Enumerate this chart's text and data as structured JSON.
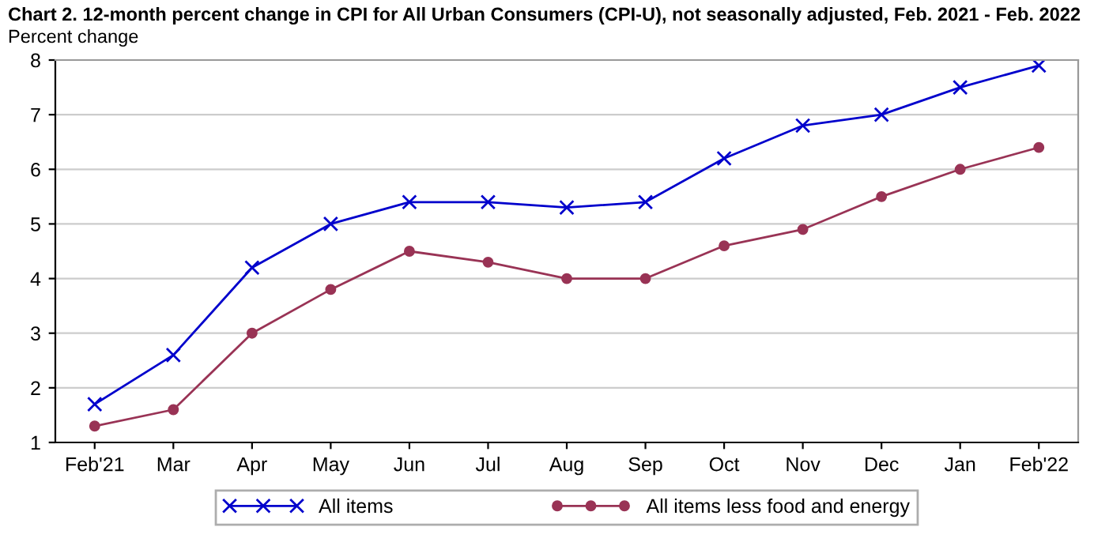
{
  "chart_data": {
    "type": "line",
    "title": "Chart 2. 12-month percent change in CPI for All Urban Consumers (CPI-U), not seasonally adjusted, Feb. 2021 - Feb. 2022",
    "ylabel": "Percent change",
    "categories": [
      "Feb'21",
      "Mar",
      "Apr",
      "May",
      "Jun",
      "Jul",
      "Aug",
      "Sep",
      "Oct",
      "Nov",
      "Dec",
      "Jan",
      "Feb'22"
    ],
    "series": [
      {
        "name": "All items",
        "color": "#0000cc",
        "marker": "cross",
        "values": [
          1.7,
          2.6,
          4.2,
          5.0,
          5.4,
          5.4,
          5.3,
          5.4,
          6.2,
          6.8,
          7.0,
          7.5,
          7.9
        ]
      },
      {
        "name": "All items less food and energy",
        "color": "#993355",
        "marker": "circle",
        "values": [
          1.3,
          1.6,
          3.0,
          3.8,
          4.5,
          4.3,
          4.0,
          4.0,
          4.6,
          4.9,
          5.5,
          6.0,
          6.4
        ]
      }
    ],
    "ylim": [
      1,
      8
    ],
    "yticks": [
      1,
      2,
      3,
      4,
      5,
      6,
      7,
      8
    ],
    "grid": "y",
    "legend": "bottom",
    "line_style": "solid"
  }
}
